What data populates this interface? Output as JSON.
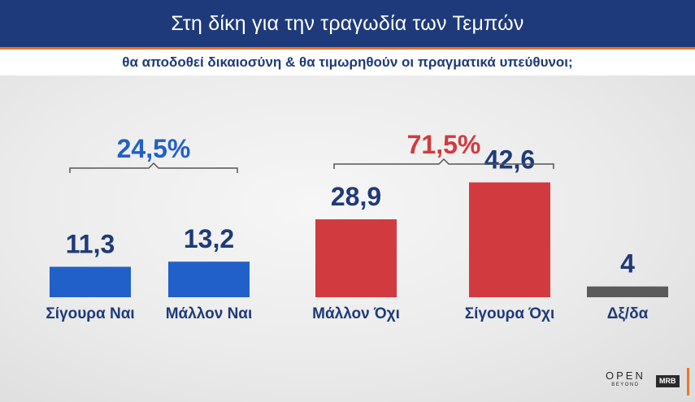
{
  "header": {
    "title": "Στη δίκη για την τραγωδία των Τεμπών"
  },
  "subtitle": "θα αποδοθεί δικαιοσύνη & θα τιμωρηθούν οι πραγματικά υπεύθυνοι;",
  "colors": {
    "header_bg": "#1e3a7a",
    "accent": "#e8782a",
    "yes": "#2160c8",
    "no": "#d13a3e",
    "dk": "#5b5b5b",
    "value_text": "#1e3a7a",
    "label_text": "#1e3a7a"
  },
  "chart_data": {
    "type": "bar",
    "categories": [
      "Σίγουρα Ναι",
      "Μάλλον Ναι",
      "Μάλλον Όχι",
      "Σίγουρα Όχι",
      "Δξ/δα"
    ],
    "values": [
      11.3,
      13.2,
      28.9,
      42.6,
      4
    ],
    "value_labels": [
      "11,3",
      "13,2",
      "28,9",
      "42,6",
      "4"
    ],
    "bar_colors": [
      "#2160c8",
      "#2160c8",
      "#d13a3e",
      "#d13a3e",
      "#5b5b5b"
    ],
    "groups": [
      {
        "label": "24,5%",
        "members": [
          0,
          1
        ],
        "color": "#2160c8"
      },
      {
        "label": "71,5%",
        "members": [
          2,
          3
        ],
        "color": "#d13a3e"
      }
    ],
    "title": "Στη δίκη για την τραγωδία των Τεμπών",
    "subtitle": "θα αποδοθεί δικαιοσύνη & θα τιμωρηθούν οι πραγματικά υπεύθυνοι;",
    "xlabel": "",
    "ylabel": "",
    "grid": false
  },
  "logos": {
    "open": "OPEN",
    "open_sub": "BEYOND",
    "mrb": "MRB"
  }
}
